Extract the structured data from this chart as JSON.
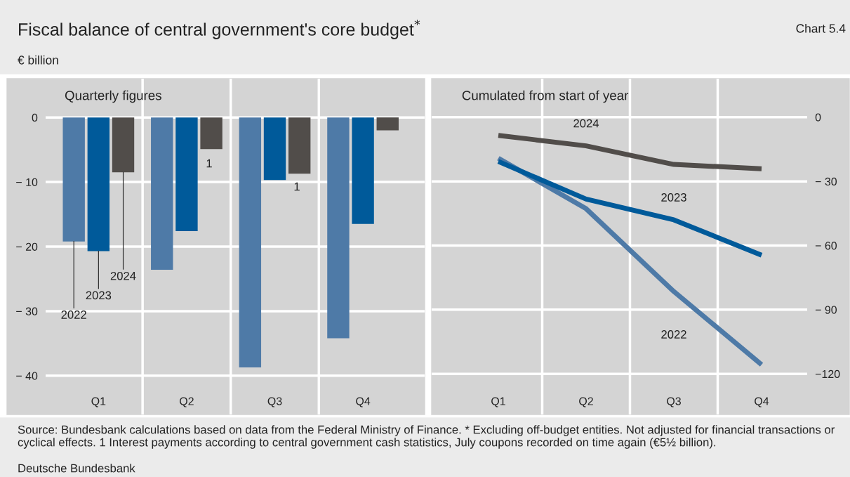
{
  "chart_data": [
    {
      "type": "bar",
      "title": "Quarterly figures",
      "annotations": [
        "Fiscal balance of central government's core budget$^{*}$",
        "Chart 5.4",
        "€ billion",
        "Source: Bundesbank calculations based on data from the Federal Ministry of Finance. * Excluding off-budget entities. Not adjusted for financial transactions or cyclical effects. 1 Interest payments according to central government cash statistics, July coupons recorded on time again (€5½ billion).",
        "Deutsche Bundesbank",
        "1",
        "1"
      ],
      "categories": [
        "Q1",
        "Q2",
        "Q3",
        "Q4"
      ],
      "series": [
        {
          "name": "2022",
          "color": "#4e7aa7",
          "values": [
            -19.2,
            -23.6,
            -38.7,
            -34.2
          ]
        },
        {
          "name": "2023",
          "color": "#005a9a",
          "values": [
            -20.7,
            -17.6,
            -9.7,
            -16.5
          ]
        },
        {
          "name": "2024",
          "color": "#514d4a",
          "values": [
            -8.5,
            -4.9,
            -8.7,
            -2.0
          ]
        }
      ],
      "ylim": [
        -46,
        6
      ],
      "yticks": [
        0,
        {
          "value": -10,
          "label": "− 10"
        },
        {
          "value": -20,
          "label": "− 20"
        },
        {
          "value": -30,
          "label": "− 30"
        },
        {
          "value": -40,
          "label": "− 40"
        }
      ],
      "grid": "y",
      "legend": false
    },
    {
      "type": "line",
      "title": "Cumulated from start of year",
      "categories": [
        "Q1",
        "Q2",
        "Q3",
        "Q4"
      ],
      "series": [
        {
          "name": "2022",
          "color": "#4e7aa7",
          "values": [
            -19.2,
            -42.8,
            -81.5,
            -115.7
          ]
        },
        {
          "name": "2023",
          "color": "#005a9a",
          "values": [
            -20.7,
            -38.3,
            -48.0,
            -64.5
          ]
        },
        {
          "name": "2024",
          "color": "#514d4a",
          "values": [
            -8.5,
            -13.4,
            -22.1,
            -24.1
          ]
        }
      ],
      "ylim": [
        -139,
        18
      ],
      "yticks": [
        0,
        {
          "value": -30,
          "label": "− 30"
        },
        {
          "value": -60,
          "label": "− 60"
        },
        {
          "value": -90,
          "label": "− 90"
        },
        {
          "value": -120,
          "label": "−120"
        }
      ],
      "grid": "y",
      "legend": false,
      "marker": "none",
      "line_style": "solid"
    }
  ]
}
